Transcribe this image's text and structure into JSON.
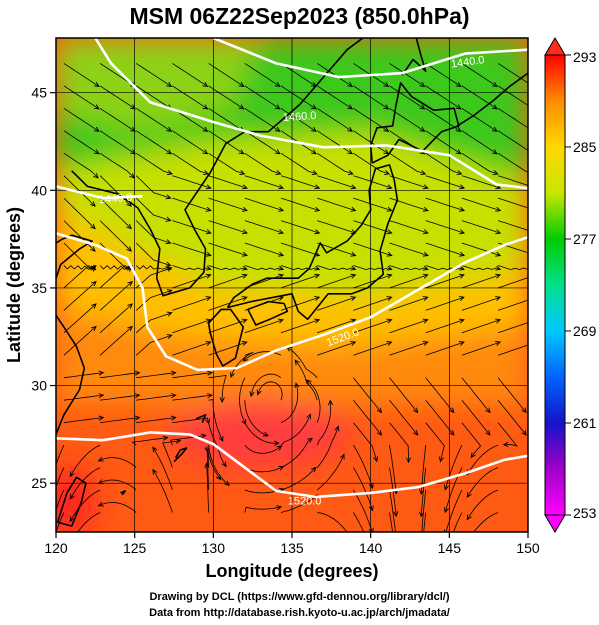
{
  "title": "MSM 06Z22Sep2023 (850.0hPa)",
  "map": {
    "lon_range": [
      120,
      150
    ],
    "lat_range": [
      22.5,
      47.8
    ],
    "x_ticks": [
      120,
      125,
      130,
      135,
      140,
      145,
      150
    ],
    "y_ticks": [
      25,
      30,
      35,
      40,
      45
    ],
    "x_tick_labels": [
      "120",
      "125",
      "130",
      "135",
      "140",
      "145",
      "150"
    ],
    "y_tick_labels": [
      "25",
      "30",
      "35",
      "40",
      "45"
    ],
    "xlabel": "Longitude (degrees)",
    "ylabel": "Latitude  (degrees)",
    "grid": true,
    "field": "temperature (K), shaded",
    "streamlines": "wind, black arrows",
    "coastlines": "black"
  },
  "contours": [
    {
      "level": "1440.0",
      "color": "#ffffff",
      "path": [
        [
          122.5,
          47.8
        ],
        [
          123.5,
          46.5
        ],
        [
          126,
          44.5
        ],
        [
          130,
          43.5
        ],
        [
          133,
          42.8
        ],
        [
          137,
          42.2
        ],
        [
          141,
          42.3
        ],
        [
          145,
          41.8
        ],
        [
          148,
          40.3
        ],
        [
          150,
          40.1
        ]
      ]
    },
    {
      "level": "1440.0",
      "color": "#ffffff",
      "path": [
        [
          130,
          47.8
        ],
        [
          134,
          46.5
        ],
        [
          138,
          45.8
        ],
        [
          142,
          46.0
        ],
        [
          146,
          47.0
        ],
        [
          150,
          47.2
        ]
      ]
    },
    {
      "level": "1440.0",
      "color": "#ffffff",
      "path": [
        [
          120,
          40.2
        ],
        [
          123,
          39.6
        ],
        [
          125.5,
          39.7
        ]
      ]
    },
    {
      "level": "1520.0",
      "color": "#ffffff",
      "path": [
        [
          120,
          37.8
        ],
        [
          122.5,
          37.2
        ],
        [
          124.5,
          36.5
        ],
        [
          125.5,
          35.0
        ],
        [
          125.8,
          33.0
        ],
        [
          127,
          31.5
        ],
        [
          129,
          30.8
        ],
        [
          131.5,
          30.9
        ],
        [
          134,
          31.8
        ],
        [
          137,
          32.6
        ],
        [
          140,
          33.5
        ],
        [
          143,
          34.9
        ],
        [
          146,
          36.3
        ],
        [
          148.5,
          37.2
        ],
        [
          150,
          37.6
        ]
      ]
    },
    {
      "level": "1520.0",
      "color": "#ffffff",
      "path": [
        [
          120,
          27.3
        ],
        [
          123,
          27.2
        ],
        [
          126,
          27.6
        ],
        [
          128.5,
          27.5
        ],
        [
          130,
          27.0
        ],
        [
          132,
          25.8
        ],
        [
          134,
          24.6
        ],
        [
          136.5,
          24.3
        ],
        [
          140,
          24.5
        ],
        [
          143,
          24.8
        ],
        [
          146,
          25.5
        ],
        [
          148.5,
          26.2
        ],
        [
          150,
          26.4
        ]
      ]
    }
  ],
  "contour_labels": [
    {
      "text": "1440.0",
      "lon": 146.2,
      "lat": 46.4,
      "angle": -8
    },
    {
      "text": "1460.0",
      "lon": 135.5,
      "lat": 43.6,
      "angle": -4
    },
    {
      "text": "1440.0",
      "lon": 123.8,
      "lat": 39.4,
      "angle": -4
    },
    {
      "text": "1520.0",
      "lon": 138.3,
      "lat": 32.3,
      "angle": -20
    },
    {
      "text": "1520.0",
      "lon": 135.8,
      "lat": 23.9,
      "angle": 0
    }
  ],
  "colorbar": {
    "min": 253,
    "max": 293,
    "labels": [
      "293",
      "285",
      "277",
      "269",
      "261",
      "253"
    ],
    "label_values": [
      293,
      285,
      277,
      269,
      261,
      253
    ],
    "colors": [
      "#ff0000",
      "#ff8c00",
      "#ffd700",
      "#c8e600",
      "#00cc00",
      "#00e08c",
      "#00c8ff",
      "#0064ff",
      "#1414c8",
      "#a000c8",
      "#ff00ff"
    ]
  },
  "credits": {
    "line1": "Drawing by DCL (https://www.gfd-dennou.org/library/dcl/)",
    "line2": "Data from http://database.rish.kyoto-u.ac.jp/arch/jmadata/"
  }
}
